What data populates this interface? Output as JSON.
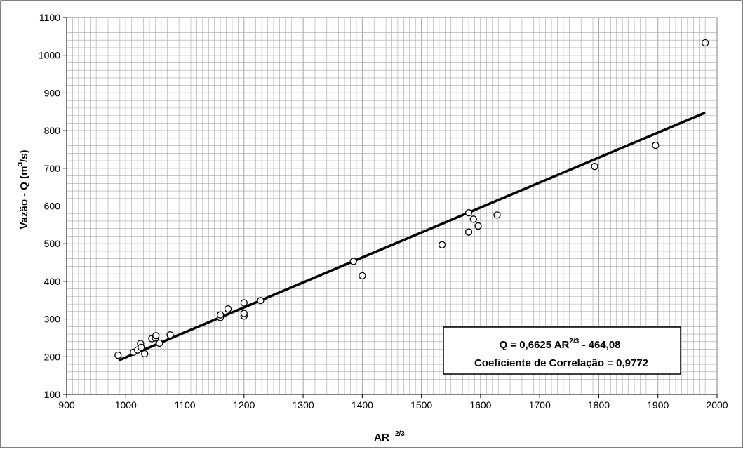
{
  "chart_data": {
    "type": "scatter",
    "title": "",
    "xlabel": "AR",
    "xlabel_sup": "2/3",
    "ylabel": "Vazão - Q (m",
    "ylabel_sup": "3",
    "ylabel_end": "/s)",
    "xlim": [
      900,
      2000
    ],
    "ylim": [
      100,
      1100
    ],
    "x_ticks": [
      900,
      1000,
      1100,
      1200,
      1300,
      1400,
      1500,
      1600,
      1700,
      1800,
      1900,
      2000
    ],
    "y_ticks": [
      100,
      200,
      300,
      400,
      500,
      600,
      700,
      800,
      900,
      1000,
      1100
    ],
    "x_tick_labels": [
      "900",
      "1000",
      "1100",
      "1200",
      "1300",
      "1400",
      "1500",
      "1600",
      "1700",
      "1800",
      "1900",
      "2000"
    ],
    "y_tick_labels": [
      "100",
      "200",
      "300",
      "400",
      "500",
      "600",
      "700",
      "800",
      "900",
      "1000",
      "1100"
    ],
    "grid": true,
    "points": [
      {
        "x": 987,
        "y": 204
      },
      {
        "x": 1013,
        "y": 212
      },
      {
        "x": 1020,
        "y": 218
      },
      {
        "x": 1025,
        "y": 235
      },
      {
        "x": 1026,
        "y": 225
      },
      {
        "x": 1032,
        "y": 208
      },
      {
        "x": 1044,
        "y": 248
      },
      {
        "x": 1050,
        "y": 250
      },
      {
        "x": 1051,
        "y": 256
      },
      {
        "x": 1057,
        "y": 236
      },
      {
        "x": 1075,
        "y": 258
      },
      {
        "x": 1160,
        "y": 304
      },
      {
        "x": 1160,
        "y": 311
      },
      {
        "x": 1173,
        "y": 327
      },
      {
        "x": 1200,
        "y": 308
      },
      {
        "x": 1200,
        "y": 315
      },
      {
        "x": 1200,
        "y": 343
      },
      {
        "x": 1228,
        "y": 349
      },
      {
        "x": 1385,
        "y": 453
      },
      {
        "x": 1400,
        "y": 415
      },
      {
        "x": 1535,
        "y": 497
      },
      {
        "x": 1580,
        "y": 531
      },
      {
        "x": 1580,
        "y": 582
      },
      {
        "x": 1588,
        "y": 565
      },
      {
        "x": 1596,
        "y": 547
      },
      {
        "x": 1628,
        "y": 576
      },
      {
        "x": 1793,
        "y": 705
      },
      {
        "x": 1896,
        "y": 761
      },
      {
        "x": 1980,
        "y": 1033
      }
    ],
    "fit_line": {
      "x": [
        988,
        1980
      ],
      "y": [
        190.5,
        847.7
      ],
      "slope": 0.6625,
      "intercept": -464.08
    },
    "annotation": {
      "line1": "Q = 0,6625 AR",
      "line1_sup": "2/3",
      "line1_end": " -  464,08",
      "line2": "Coeficiente de Correlação = 0,9772"
    },
    "colors": {
      "line": "#000000",
      "marker_edge": "#000000",
      "grid": "#a6a6a6",
      "background": "#ffffff"
    }
  }
}
